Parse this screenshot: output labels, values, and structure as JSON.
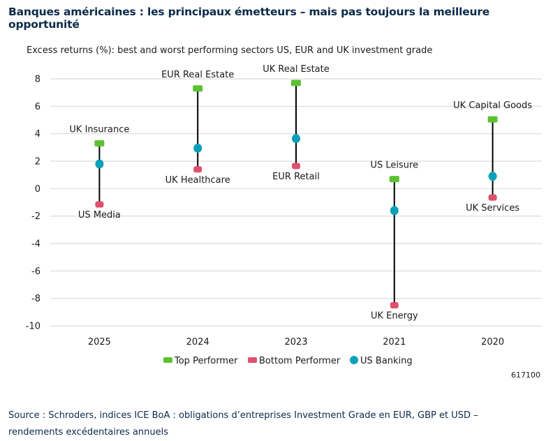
{
  "title": "Banques américaines : les principaux émetteurs – mais pas toujours la meilleure opportunité",
  "chart_data": {
    "type": "scatter",
    "title": "Excess returns (%): best and worst performing sectors US, EUR and UK investment grade",
    "ylim": [
      -10,
      8
    ],
    "yticks": [
      8,
      6,
      4,
      2,
      0,
      -2,
      -4,
      -6,
      -8,
      -10
    ],
    "grid": true,
    "legend_placement": "bottom",
    "categories": [
      "2025",
      "2024",
      "2023",
      "2021",
      "2020"
    ],
    "series": [
      {
        "name": "Top Performer",
        "color": "#5cc132",
        "marker": "square",
        "values": [
          3.3,
          7.3,
          7.7,
          0.7,
          5.05
        ],
        "labels": [
          "UK Insurance",
          "EUR Real Estate",
          "UK Real Estate",
          "US Leisure",
          "UK Capital Goods"
        ]
      },
      {
        "name": "Bottom Performer",
        "color": "#e0506e",
        "marker": "square",
        "values": [
          -1.15,
          1.4,
          1.65,
          -8.5,
          -0.65
        ],
        "labels": [
          "US Media",
          "UK Healthcare",
          "EUR Retail",
          "UK Energy",
          "UK Services"
        ]
      },
      {
        "name": "US Banking",
        "color": "#0aa0b8",
        "marker": "circle",
        "values": [
          1.8,
          2.95,
          3.65,
          -1.6,
          0.9
        ]
      }
    ]
  },
  "chart_code": "617100",
  "source": "Source : Schroders, indices ICE BoA : obligations d’entreprises Investment Grade en EUR, GBP et USD – rendements excédentaires annuels"
}
